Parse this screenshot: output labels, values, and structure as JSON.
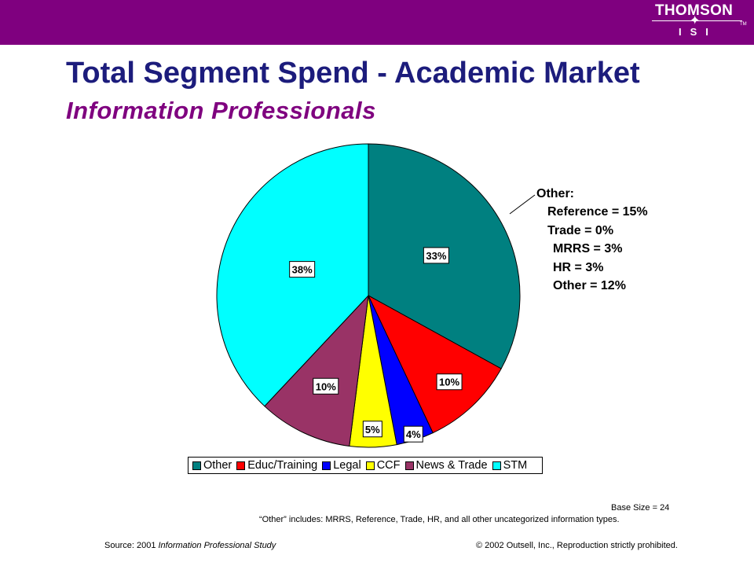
{
  "header": {
    "logo_top": "THOMSON",
    "logo_bottom": "ISI",
    "logo_tm": "TM"
  },
  "title": "Total Segment Spend - Academic Market",
  "subtitle": "Information Professionals",
  "chart_data": {
    "type": "pie",
    "categories": [
      "Other",
      "Educ/Training",
      "Legal",
      "CCF",
      "News & Trade",
      "STM"
    ],
    "values": [
      33,
      10,
      4,
      5,
      10,
      38
    ],
    "data_labels": [
      "33%",
      "10%",
      "4%",
      "5%",
      "10%",
      "38%"
    ],
    "colors": [
      "#008080",
      "#ff0000",
      "#0000ff",
      "#ffff00",
      "#993366",
      "#00ffff"
    ],
    "legend_position": "bottom",
    "start_angle": "12 o'clock",
    "direction": "clockwise"
  },
  "other_breakdown": {
    "heading": "Other:",
    "items": [
      "Reference = 15%",
      "Trade = 0%",
      "MRRS = 3%",
      "HR = 3%",
      "Other = 12%"
    ]
  },
  "footer": {
    "base_size": "Base Size = 24",
    "note": "“Other” includes: MRRS, Reference, Trade, HR, and all other uncategorized information types.",
    "source_prefix": "Source:  2001 ",
    "source_title": "Information Professional Study",
    "copyright": "© 2002 Outsell, Inc., Reproduction strictly prohibited."
  }
}
